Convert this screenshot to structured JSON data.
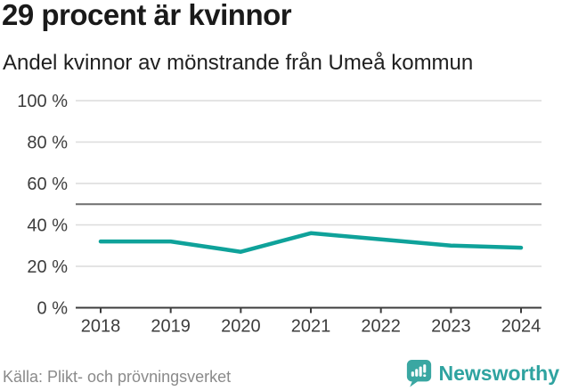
{
  "header": {
    "title": "29 procent är kvinnor",
    "subtitle": "Andel kvinnor av mönstrande från Umeå kommun"
  },
  "chart_data": {
    "type": "line",
    "title": "29 procent är kvinnor",
    "subtitle": "Andel kvinnor av mönstrande från Umeå kommun",
    "x": [
      "2018",
      "2019",
      "2020",
      "2021",
      "2022",
      "2023",
      "2024"
    ],
    "series": [
      {
        "name": "Andel kvinnor av mönstrande (%)",
        "values": [
          32,
          32,
          27,
          36,
          33,
          30,
          29
        ]
      }
    ],
    "unit": "%",
    "ylim": [
      0,
      100
    ],
    "yticks": [
      0,
      20,
      40,
      60,
      80,
      100
    ],
    "ytick_labels": [
      "0 %",
      "20 %",
      "40 %",
      "60 %",
      "80 %",
      "100 %"
    ],
    "reference_line": 50,
    "grid": true,
    "legend": "none",
    "line_color": "#0fa29a"
  },
  "footer": {
    "source": "Källa: Plikt- och prövningsverket",
    "brand": "Newsworthy"
  },
  "colors": {
    "line": "#0fa29a",
    "grid": "#dcdcdc",
    "reference_line": "#6f6f6f",
    "axis": "#3c3c3c",
    "tick_text": "#3d3d3d",
    "title_text": "#1a1a1a",
    "source_text": "#8a8a8a",
    "brand_teal": "#2fa3a0",
    "logo_background": "#3aa7a2"
  }
}
